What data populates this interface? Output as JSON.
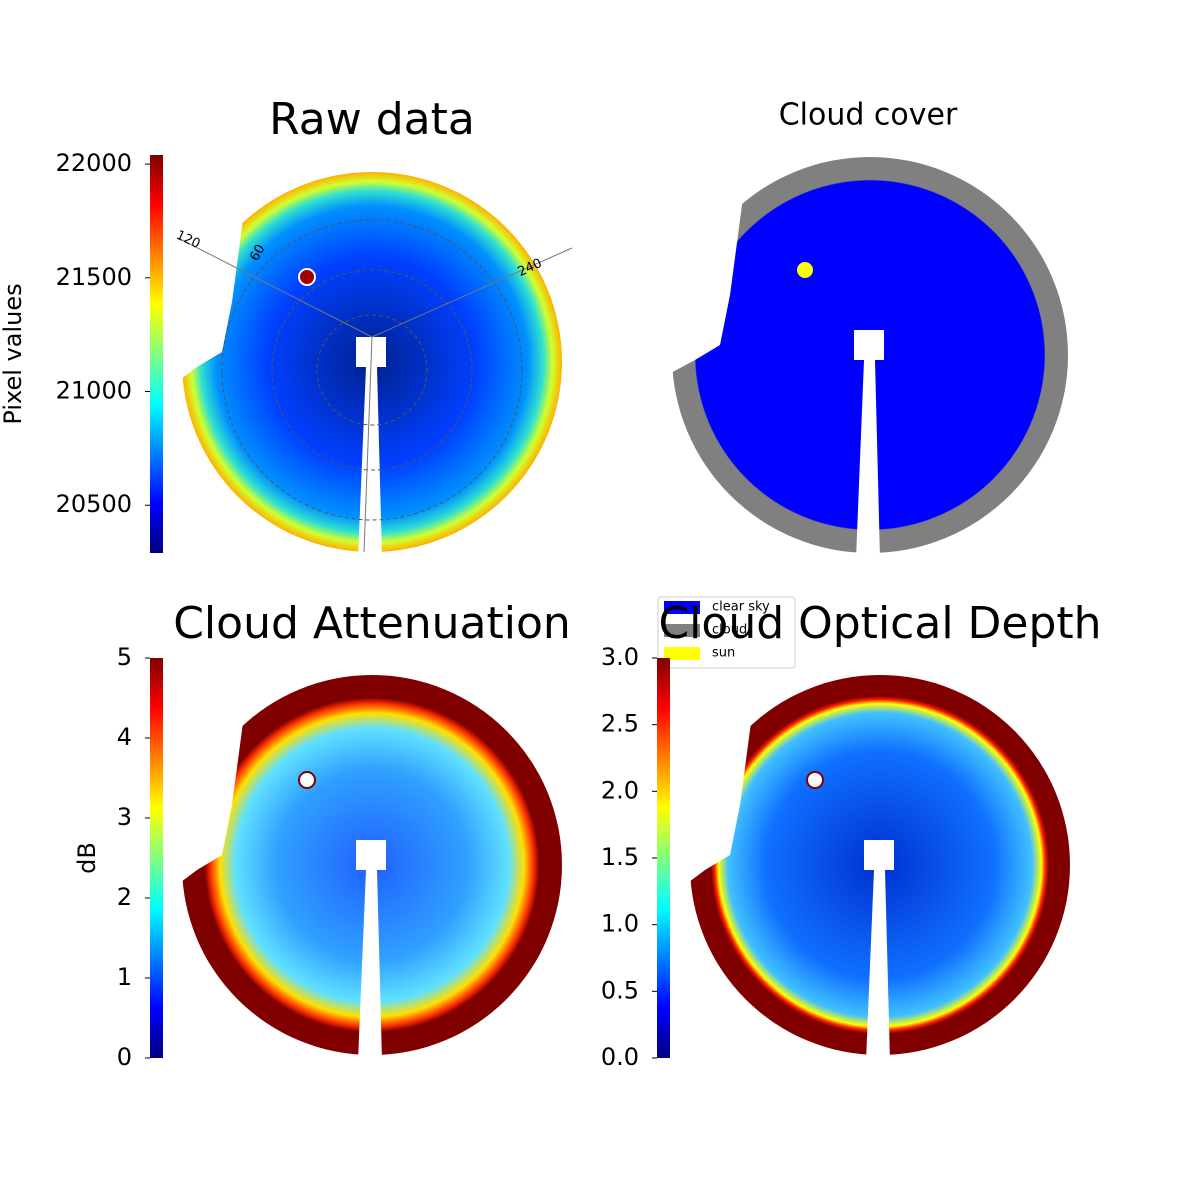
{
  "chart_data": [
    {
      "type": "heatmap",
      "title": "Raw data",
      "colormap": "jet",
      "colorbar_label": "Pixel values",
      "ylim": [
        20290,
        22040
      ],
      "yticks": [
        20500,
        21000,
        21500,
        22000
      ],
      "annotations": [
        "120",
        "60",
        "240"
      ]
    },
    {
      "type": "heatmap",
      "title": "Cloud cover",
      "series": [
        {
          "name": "clear sky",
          "color": "#0000ff"
        },
        {
          "name": "cloud",
          "color": "#808080"
        },
        {
          "name": "sun",
          "color": "#ffff00"
        }
      ]
    },
    {
      "type": "heatmap",
      "title": "Cloud Attenuation",
      "colormap": "jet",
      "colorbar_label": "dB",
      "ylim": [
        0,
        5
      ],
      "yticks": [
        0,
        1,
        2,
        3,
        4,
        5
      ]
    },
    {
      "type": "heatmap",
      "title": "Cloud Optical Depth",
      "colormap": "jet",
      "ylim": [
        0,
        3
      ],
      "yticks": [
        {
          "value": 0,
          "label": "0.0"
        },
        {
          "value": 0.5,
          "label": "0.5"
        },
        {
          "value": 1,
          "label": "1.0"
        },
        {
          "value": 1.5,
          "label": "1.5"
        },
        {
          "value": 2,
          "label": "2.0"
        },
        {
          "value": 2.5,
          "label": "2.5"
        },
        {
          "value": 3,
          "label": "3.0"
        }
      ]
    }
  ]
}
